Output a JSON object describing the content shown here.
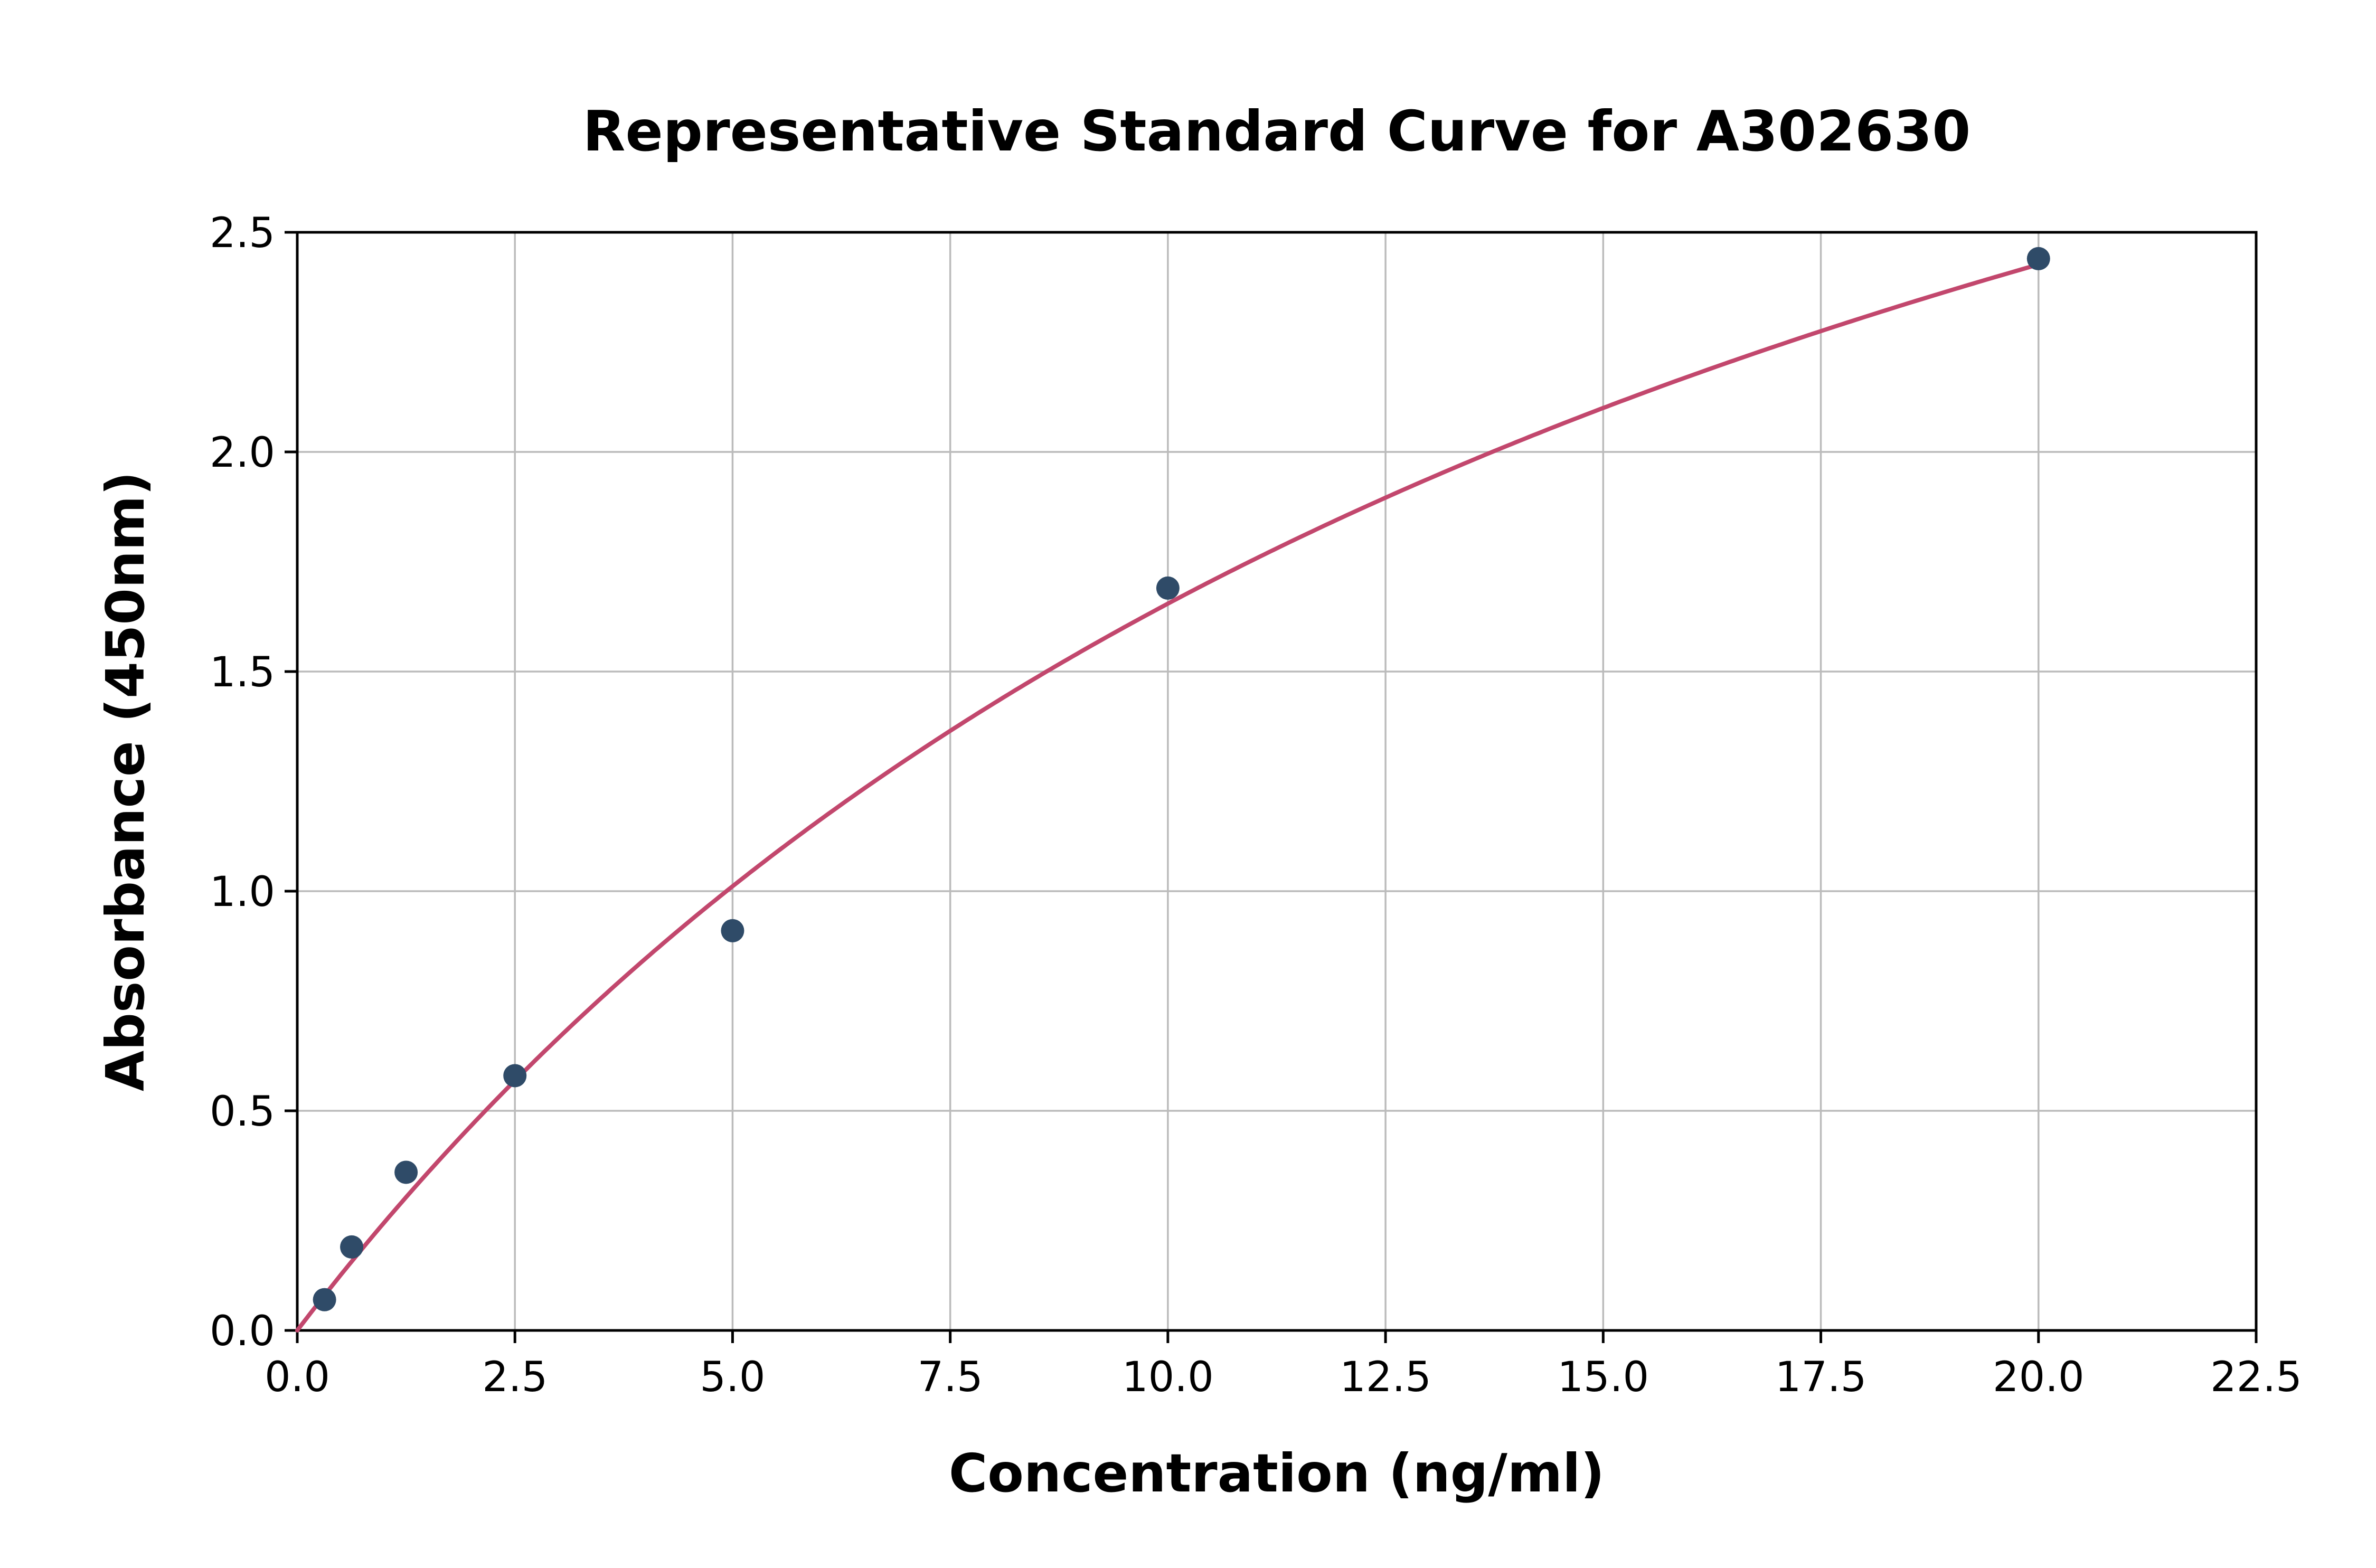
{
  "chart_data": {
    "type": "scatter",
    "title": "Representative Standard Curve for A302630",
    "xlabel": "Concentration (ng/ml)",
    "ylabel": "Absorbance (450nm)",
    "xlim": [
      0,
      22.5
    ],
    "ylim": [
      0,
      2.5
    ],
    "xticks": [
      0.0,
      2.5,
      5.0,
      7.5,
      10.0,
      12.5,
      15.0,
      17.5,
      20.0,
      22.5
    ],
    "xtick_labels": [
      "0.0",
      "2.5",
      "5.0",
      "7.5",
      "10.0",
      "12.5",
      "15.0",
      "17.5",
      "20.0",
      "22.5"
    ],
    "yticks": [
      0.0,
      0.5,
      1.0,
      1.5,
      2.0,
      2.5
    ],
    "ytick_labels": [
      "0.0",
      "0.5",
      "1.0",
      "1.5",
      "2.0",
      "2.5"
    ],
    "grid": true,
    "legend": "none",
    "points": [
      {
        "x": 0.313,
        "y": 0.07
      },
      {
        "x": 0.625,
        "y": 0.19
      },
      {
        "x": 1.25,
        "y": 0.36
      },
      {
        "x": 2.5,
        "y": 0.58
      },
      {
        "x": 5.0,
        "y": 0.91
      },
      {
        "x": 10.0,
        "y": 1.69
      },
      {
        "x": 20.0,
        "y": 2.44
      }
    ],
    "fit_curve": {
      "model": "y = a*x / (b + x)",
      "a": 4.55,
      "b": 17.5,
      "x_range": [
        0,
        20
      ]
    },
    "colors": {
      "point": "#2f4b68",
      "curve": "#c2476d",
      "grid": "#bbbbbb",
      "axis": "#000000",
      "background": "#ffffff"
    }
  }
}
